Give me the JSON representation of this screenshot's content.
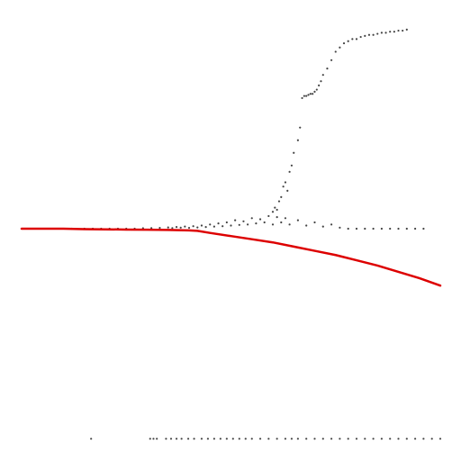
{
  "chart_data": {
    "type": "scatter",
    "grid": false,
    "legend": "none",
    "xlim": [
      0,
      1
    ],
    "ylim": [
      -1.0,
      1.0
    ],
    "colors": {
      "points": "#444444",
      "line": "#dd0000"
    },
    "series": [
      {
        "kind": "points",
        "color": "#444444",
        "x": [
          0.166,
          0.307,
          0.315,
          0.323,
          0.345,
          0.357,
          0.37,
          0.382,
          0.398,
          0.412,
          0.43,
          0.445,
          0.46,
          0.475,
          0.49,
          0.505,
          0.52,
          0.535,
          0.55,
          0.57,
          0.59,
          0.61,
          0.63,
          0.645,
          0.66,
          0.68,
          0.7,
          0.72,
          0.74,
          0.76,
          0.78,
          0.8,
          0.82,
          0.84,
          0.86,
          0.88,
          0.9,
          0.92,
          0.94,
          0.96,
          0.98,
          1.0
        ],
        "y": [
          -0.997,
          -0.997,
          -0.997,
          -0.997,
          -0.997,
          -0.997,
          -0.997,
          -0.997,
          -0.997,
          -0.997,
          -0.997,
          -0.997,
          -0.997,
          -0.997,
          -0.997,
          -0.997,
          -0.997,
          -0.997,
          -0.997,
          -0.997,
          -0.997,
          -0.997,
          -0.997,
          -0.997,
          -0.997,
          -0.997,
          -0.997,
          -0.997,
          -0.997,
          -0.997,
          -0.997,
          -0.997,
          -0.997,
          -0.997,
          -0.997,
          -0.997,
          -0.997,
          -0.997,
          -0.997,
          -0.997,
          -0.997,
          -0.997
        ]
      },
      {
        "kind": "points",
        "color": "#444444",
        "x": [
          0.12,
          0.15,
          0.17,
          0.19,
          0.21,
          0.23,
          0.25,
          0.27,
          0.29,
          0.31,
          0.33,
          0.35,
          0.36,
          0.37,
          0.38,
          0.39,
          0.4,
          0.41,
          0.42,
          0.43,
          0.44,
          0.45,
          0.46,
          0.47,
          0.48,
          0.49,
          0.5,
          0.51,
          0.52,
          0.53,
          0.54,
          0.55,
          0.56,
          0.57,
          0.58,
          0.59,
          0.6,
          0.61,
          0.62,
          0.63,
          0.64,
          0.66,
          0.68,
          0.7,
          0.72,
          0.74,
          0.76,
          0.78,
          0.8,
          0.82,
          0.84,
          0.86,
          0.88,
          0.9,
          0.92,
          0.94,
          0.96
        ],
        "y": [
          0.0,
          0.0,
          0.0,
          0.0,
          0.0,
          0.0,
          0.0,
          0.0,
          0.002,
          0.003,
          0.004,
          0.006,
          0.003,
          0.008,
          0.005,
          0.01,
          0.004,
          0.012,
          0.006,
          0.015,
          0.008,
          0.02,
          0.01,
          0.025,
          0.012,
          0.03,
          0.015,
          0.04,
          0.018,
          0.035,
          0.02,
          0.05,
          0.025,
          0.045,
          0.03,
          0.06,
          0.02,
          0.055,
          0.03,
          0.05,
          0.02,
          0.04,
          0.015,
          0.03,
          0.01,
          0.02,
          0.005,
          0.0,
          0.0,
          0.0,
          0.0,
          0.0,
          0.0,
          0.0,
          0.0,
          0.0,
          0.0
        ]
      },
      {
        "kind": "points",
        "color": "#444444",
        "x": [
          0.6,
          0.605,
          0.61,
          0.615,
          0.62,
          0.625,
          0.63,
          0.635,
          0.64,
          0.645,
          0.65,
          0.66,
          0.665,
          0.67,
          0.675,
          0.68,
          0.685,
          0.69,
          0.695,
          0.7,
          0.705,
          0.71,
          0.715,
          0.72,
          0.73,
          0.74,
          0.75,
          0.76,
          0.77,
          0.78,
          0.79,
          0.8,
          0.81,
          0.82,
          0.83,
          0.84,
          0.85,
          0.86,
          0.87,
          0.88,
          0.89,
          0.9,
          0.91,
          0.92
        ],
        "y": [
          0.08,
          0.1,
          0.09,
          0.13,
          0.15,
          0.2,
          0.22,
          0.18,
          0.27,
          0.3,
          0.36,
          0.42,
          0.48,
          0.62,
          0.63,
          0.63,
          0.635,
          0.64,
          0.64,
          0.65,
          0.66,
          0.68,
          0.7,
          0.73,
          0.76,
          0.8,
          0.84,
          0.86,
          0.88,
          0.89,
          0.9,
          0.9,
          0.91,
          0.915,
          0.92,
          0.92,
          0.925,
          0.93,
          0.93,
          0.935,
          0.935,
          0.94,
          0.94,
          0.945
        ]
      },
      {
        "kind": "line",
        "color": "#dd0000",
        "x": [
          0.0,
          0.05,
          0.1,
          0.15,
          0.2,
          0.25,
          0.3,
          0.35,
          0.4,
          0.42,
          0.45,
          0.5,
          0.55,
          0.6,
          0.65,
          0.7,
          0.75,
          0.8,
          0.85,
          0.9,
          0.95,
          1.0
        ],
        "y": [
          0.0,
          0.0,
          0.0,
          -0.002,
          -0.003,
          -0.004,
          -0.005,
          -0.006,
          -0.008,
          -0.01,
          -0.02,
          -0.035,
          -0.05,
          -0.065,
          -0.085,
          -0.105,
          -0.125,
          -0.15,
          -0.175,
          -0.205,
          -0.235,
          -0.27
        ]
      }
    ]
  }
}
